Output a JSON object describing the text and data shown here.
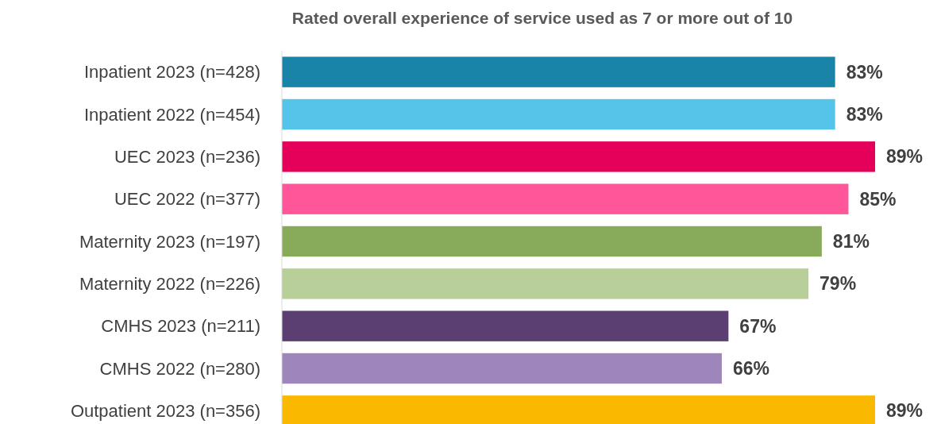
{
  "chart_data": {
    "type": "bar",
    "orientation": "horizontal",
    "title": "Rated overall experience of service used as 7 or more out of 10",
    "categories": [
      "Inpatient 2023 (n=428)",
      "Inpatient 2022 (n=454)",
      "UEC 2023 (n=236)",
      "UEC 2022 (n=377)",
      "Maternity 2023 (n=197)",
      "Maternity 2022 (n=226)",
      "CMHS 2023 (n=211)",
      "CMHS 2022 (n=280)",
      "Outpatient 2023 (n=356)"
    ],
    "values": [
      83,
      83,
      89,
      85,
      81,
      79,
      67,
      66,
      89
    ],
    "colors": [
      "#1a84a8",
      "#56c3e8",
      "#e5005a",
      "#ff5599",
      "#87ab5a",
      "#b8cf9a",
      "#5b3f72",
      "#9e85ba",
      "#fab900"
    ],
    "value_labels": [
      "83%",
      "83%",
      "89%",
      "85%",
      "81%",
      "79%",
      "67%",
      "66%",
      "89%"
    ],
    "relative": false
  }
}
